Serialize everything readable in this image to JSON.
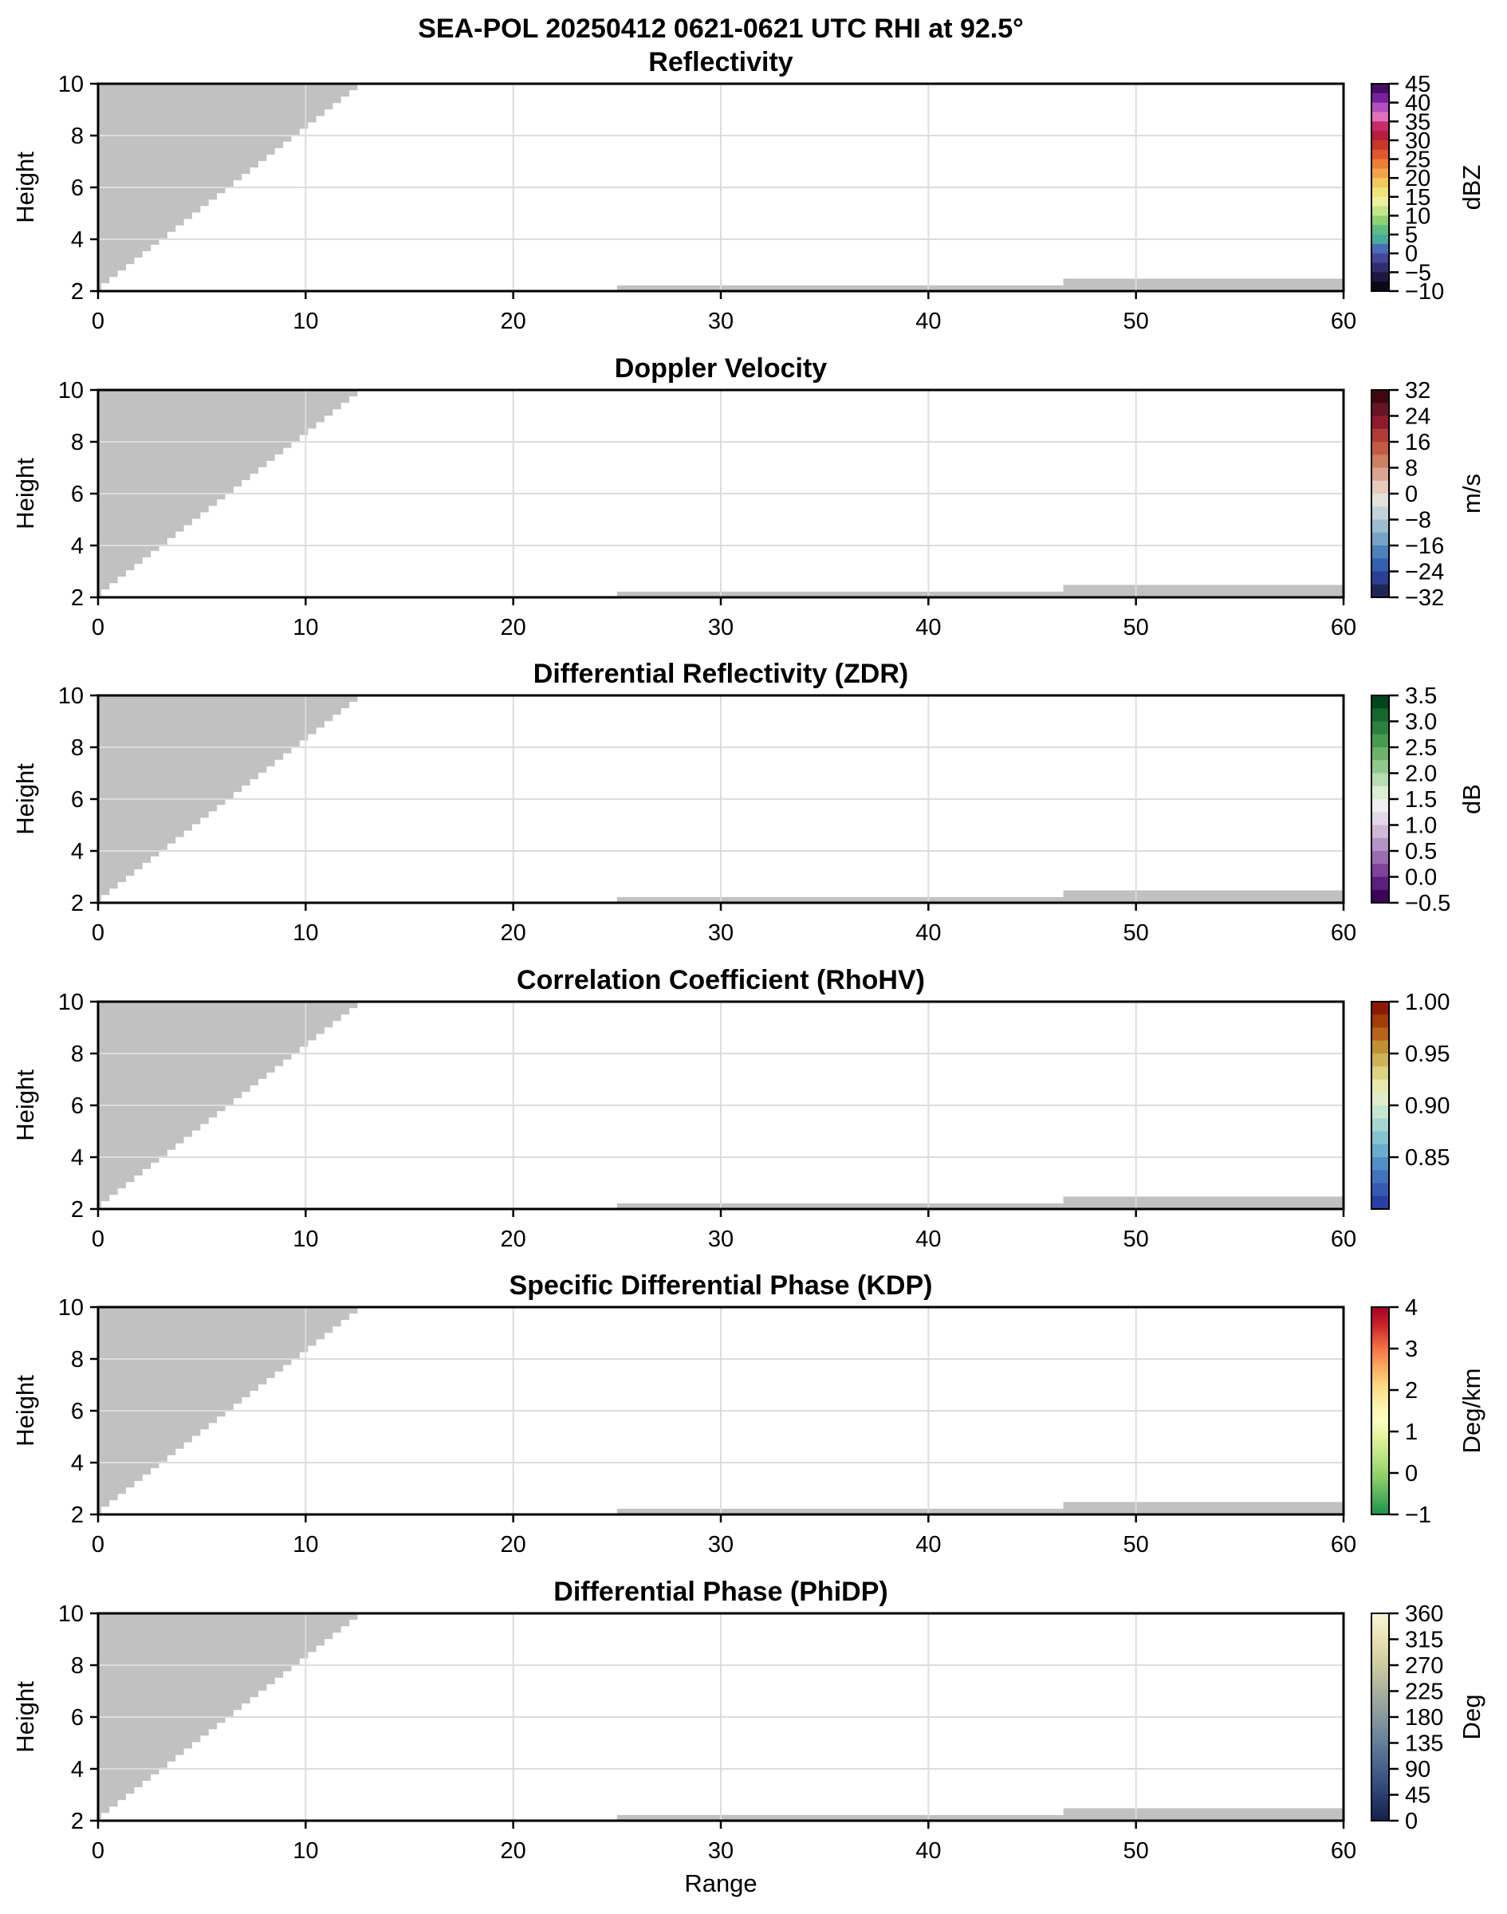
{
  "figure": {
    "background": "#ffffff",
    "mask_color": "#c1c1c1",
    "grid_color": "#dcdcdc",
    "spine_color": "#000000"
  },
  "chart_data": {
    "type": "heatmap",
    "title": "SEA-POL 20250412 0621-0621 UTC RHI at 92.5°",
    "xlabel": "Range",
    "ylabel": "Height",
    "xlim": [
      0,
      60
    ],
    "ylim": [
      2,
      10
    ],
    "x_ticks": [
      0,
      10,
      20,
      30,
      40,
      50,
      60
    ],
    "x_tick_labels": [
      "0",
      "10",
      "20",
      "30",
      "40",
      "50",
      "60"
    ],
    "y_ticks": [
      2,
      4,
      6,
      8,
      10
    ],
    "y_tick_labels": [
      "2",
      "4",
      "6",
      "8",
      "10"
    ],
    "grid": true,
    "note": "All six RHI panels show only gray no-data mask regions; no colored echo values are plotted",
    "mask_regions": {
      "wedge": {
        "shape": "staircase",
        "from_xy": [
          0,
          2.05
        ],
        "to_xy": [
          12.9,
          10
        ],
        "steps": 32
      },
      "strip_thin": {
        "x": [
          25,
          46.5
        ],
        "y": [
          2,
          2.22
        ]
      },
      "strip_thick": {
        "x": [
          46.5,
          60
        ],
        "y": [
          2,
          2.48
        ]
      }
    },
    "panels": [
      {
        "id": "reflectivity",
        "title": "Reflectivity",
        "unit": "dBZ",
        "cbar_range": [
          -10,
          45
        ],
        "cbar_ticks": [
          45,
          40,
          35,
          30,
          25,
          20,
          15,
          10,
          5,
          0,
          -5,
          -10
        ],
        "cbar_tick_labels": [
          "45",
          "40",
          "35",
          "30",
          "25",
          "20",
          "15",
          "10",
          "5",
          "0",
          "−5",
          "−10"
        ],
        "cbar_bands": [
          "#470b68",
          "#77219e",
          "#b44fc0",
          "#e070bb",
          "#cb2a69",
          "#b51e3c",
          "#cc3627",
          "#e2572c",
          "#ee7d38",
          "#f2a44a",
          "#f2c95a",
          "#f1e476",
          "#edf09c",
          "#c3e588",
          "#8ed175",
          "#5dbd83",
          "#49ab9d",
          "#4a6db3",
          "#44479c",
          "#322c6e",
          "#1d1840",
          "#0b0717"
        ]
      },
      {
        "id": "doppler-velocity",
        "title": "Doppler Velocity",
        "unit": "m/s",
        "cbar_range": [
          -32,
          32
        ],
        "cbar_ticks": [
          32,
          24,
          16,
          8,
          0,
          -8,
          -16,
          -24,
          -32
        ],
        "cbar_tick_labels": [
          "32",
          "24",
          "16",
          "8",
          "0",
          "−8",
          "−16",
          "−24",
          "−32"
        ],
        "cbar_bands": [
          "#3f070f",
          "#661426",
          "#8c1c2c",
          "#b03a35",
          "#c35b42",
          "#cd7f64",
          "#dba492",
          "#e7cabc",
          "#e3e1dd",
          "#c2d2da",
          "#9dbcd1",
          "#75a2c6",
          "#4c82bb",
          "#3361ae",
          "#2b4092",
          "#1f2656"
        ]
      },
      {
        "id": "zdr",
        "title": "Differential Reflectivity (ZDR)",
        "unit": "dB",
        "cbar_range": [
          -0.5,
          3.5
        ],
        "cbar_ticks": [
          3.5,
          3.0,
          2.5,
          2.0,
          1.5,
          1.0,
          0.5,
          0.0,
          -0.5
        ],
        "cbar_tick_labels": [
          "3.5",
          "3.0",
          "2.5",
          "2.0",
          "1.5",
          "1.0",
          "0.5",
          "0.0",
          "−0.5"
        ],
        "cbar_bands": [
          "#00441b",
          "#13682e",
          "#2a823e",
          "#469a51",
          "#6cb26a",
          "#93c790",
          "#b8dcb2",
          "#d9eed3",
          "#efeef0",
          "#e4d7e7",
          "#cfb7d8",
          "#b493c6",
          "#9a6cb0",
          "#7d4399",
          "#5c1f80",
          "#3a0458"
        ]
      },
      {
        "id": "rhohv",
        "title": "Correlation Coefficient (RhoHV)",
        "unit": "",
        "cbar_range": [
          0.8,
          1.0
        ],
        "cbar_ticks": [
          1.0,
          0.95,
          0.9,
          0.85
        ],
        "cbar_tick_labels": [
          "1.00",
          "0.95",
          "0.90",
          "0.85"
        ],
        "cbar_bands": [
          "#8c1b00",
          "#a33c05",
          "#b5641a",
          "#c28f33",
          "#cdb356",
          "#dbd382",
          "#e8e9ab",
          "#dfeec6",
          "#c5e5cf",
          "#a5d6cf",
          "#85c4ce",
          "#67adcd",
          "#508fc6",
          "#4274bd",
          "#3659b1",
          "#2b3fa3"
        ]
      },
      {
        "id": "kdp",
        "title": "Specific Differential Phase (KDP)",
        "unit": "Deg/km",
        "cbar_range": [
          -1,
          4
        ],
        "cbar_ticks": [
          4,
          3,
          2,
          1,
          0,
          -1
        ],
        "cbar_tick_labels": [
          "4",
          "3",
          "2",
          "1",
          "0",
          "−1"
        ],
        "cbar_stops": [
          [
            0,
            "#a50026"
          ],
          [
            0.08,
            "#c81f27"
          ],
          [
            0.18,
            "#ef6540"
          ],
          [
            0.28,
            "#fca55d"
          ],
          [
            0.38,
            "#fdd983"
          ],
          [
            0.48,
            "#fdf5af"
          ],
          [
            0.55,
            "#fbfdc1"
          ],
          [
            0.63,
            "#e3f39b"
          ],
          [
            0.72,
            "#bce385"
          ],
          [
            0.82,
            "#8ccf67"
          ],
          [
            0.92,
            "#4fae5c"
          ],
          [
            1,
            "#199349"
          ]
        ]
      },
      {
        "id": "phidp",
        "title": "Differential Phase (PhiDP)",
        "unit": "Deg",
        "cbar_range": [
          0,
          360
        ],
        "cbar_ticks": [
          360,
          315,
          270,
          225,
          180,
          135,
          90,
          45,
          0
        ],
        "cbar_tick_labels": [
          "360",
          "315",
          "270",
          "225",
          "180",
          "135",
          "90",
          "45",
          "0"
        ],
        "cbar_stops": [
          [
            0,
            "#f8f5d8"
          ],
          [
            0.12,
            "#e8e3b2"
          ],
          [
            0.25,
            "#cdcba0"
          ],
          [
            0.38,
            "#a8b19d"
          ],
          [
            0.5,
            "#87999e"
          ],
          [
            0.62,
            "#64809a"
          ],
          [
            0.75,
            "#45618c"
          ],
          [
            0.88,
            "#2a3d6e"
          ],
          [
            1,
            "#14204a"
          ]
        ]
      }
    ]
  }
}
